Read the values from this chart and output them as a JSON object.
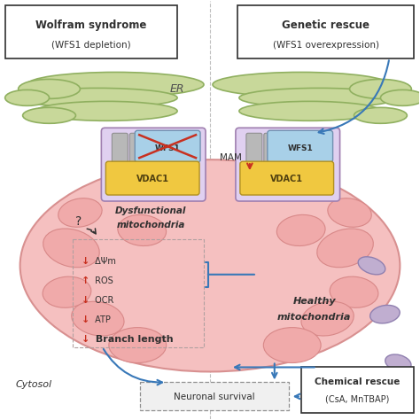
{
  "bg_color": "#ffffff",
  "divider_color": "#c0c0c0",
  "er_color": "#c8d89a",
  "er_edge_color": "#90b060",
  "mito_fill": "#f5c0c0",
  "mito_edge": "#d89090",
  "crista_fill": "#f0aaaa",
  "crista_edge": "#d88888",
  "mam_box_fill": "#e0d0f0",
  "mam_box_edge": "#a080b0",
  "wfs1_fill": "#a8d0e8",
  "wfs1_edge": "#7090b0",
  "vdac1_fill": "#f0c840",
  "vdac1_edge": "#b09020",
  "arrow_color": "#3878b8",
  "red_color": "#c83020",
  "dark_color": "#303030",
  "gray_color": "#b0b0b0",
  "light_gray": "#d8d8d8",
  "neuronal_box_fill": "#f0f0f0",
  "neuronal_box_edge": "#909090",
  "left_title": "Wolfram syndrome",
  "left_subtitle": "(WFS1 depletion)",
  "right_title": "Genetic rescue",
  "right_subtitle": "(WFS1 overexpression)",
  "er_label": "ER",
  "mam_label": "MAM",
  "dysfunc_label1": "Dysfunctional",
  "dysfunc_label2": "mitochondria",
  "healthy_label1": "Healthy",
  "healthy_label2": "mitochondria",
  "cytosol_label": "Cytosol",
  "neuronal_label": "Neuronal survival",
  "chemical_title": "Chemical rescue",
  "chemical_subtitle": "(CsA, MnTBAP)",
  "metrics": [
    {
      "arrow": "↓",
      "label": " ΔΨm",
      "bold": false
    },
    {
      "arrow": "↑",
      "label": " ROS",
      "bold": false
    },
    {
      "arrow": "↓",
      "label": " OCR",
      "bold": false
    },
    {
      "arrow": "↓",
      "label": " ATP",
      "bold": false
    },
    {
      "arrow": "↓",
      "label": " Branch length",
      "bold": true
    }
  ]
}
